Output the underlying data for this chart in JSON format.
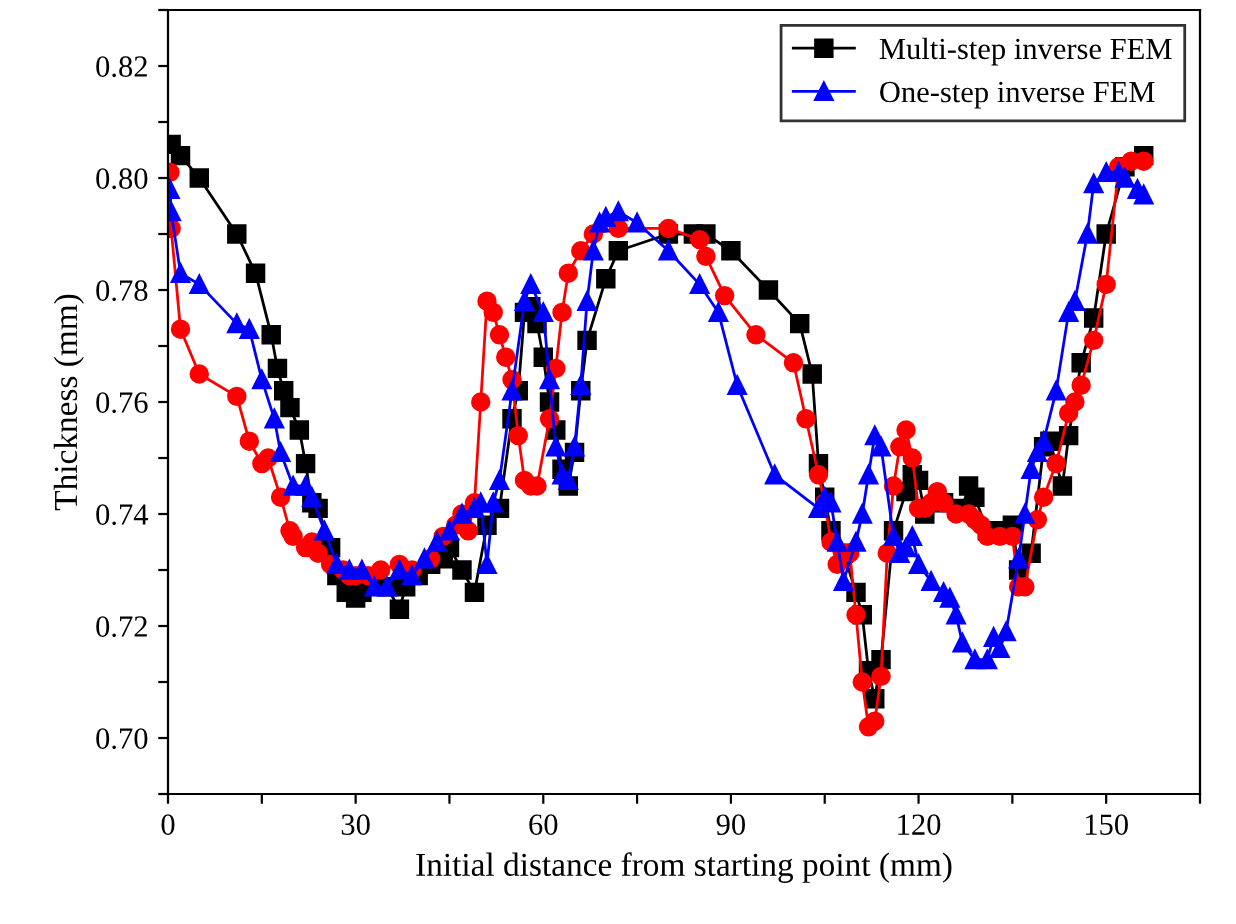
{
  "chart_data": {
    "type": "line",
    "xlabel": "Initial distance from starting point (mm)",
    "ylabel": "Thickness (mm)",
    "xlim": [
      0,
      165
    ],
    "ylim": [
      0.69,
      0.83
    ],
    "xticks": [
      0,
      {
        "value": 15,
        "label": null
      },
      30,
      {
        "value": 45,
        "label": null
      },
      60,
      {
        "value": 75,
        "label": null
      },
      90,
      {
        "value": 105,
        "label": null
      },
      120,
      {
        "value": 135,
        "label": null
      },
      150,
      {
        "value": 165,
        "label": null
      }
    ],
    "yticks": [
      {
        "value": 0.69,
        "label": null
      },
      {
        "value": 0.7,
        "label": "0.70"
      },
      {
        "value": 0.71,
        "label": null
      },
      {
        "value": 0.72,
        "label": "0.72"
      },
      {
        "value": 0.73,
        "label": null
      },
      {
        "value": 0.74,
        "label": "0.74"
      },
      {
        "value": 0.75,
        "label": null
      },
      {
        "value": 0.76,
        "label": "0.76"
      },
      {
        "value": 0.77,
        "label": null
      },
      {
        "value": 0.78,
        "label": "0.78"
      },
      {
        "value": 0.79,
        "label": null
      },
      {
        "value": 0.8,
        "label": "0.80"
      },
      {
        "value": 0.81,
        "label": null
      },
      {
        "value": 0.82,
        "label": "0.82"
      },
      {
        "value": 0.83,
        "label": null
      }
    ],
    "grid": false,
    "legend": "top right",
    "line_style": "solid",
    "series": [
      {
        "name": "Multi-step inverse FEM",
        "color": "#000000",
        "marker": "square",
        "x": [
          0.5,
          2,
          5,
          11,
          14,
          16.5,
          17.5,
          18.5,
          19.5,
          21,
          22,
          23,
          24,
          26,
          27,
          28.5,
          30,
          31,
          33,
          35,
          37,
          38,
          40,
          42,
          44,
          45,
          47,
          49,
          51,
          53,
          55,
          56,
          57,
          58,
          59,
          60,
          61,
          62,
          63,
          64,
          65,
          66,
          67,
          70,
          72,
          80,
          84,
          86,
          90,
          96,
          101,
          103,
          104,
          105,
          106,
          108,
          110,
          111,
          112,
          113,
          114,
          116,
          118,
          119,
          120,
          121,
          124,
          127,
          128,
          129,
          131,
          133,
          135,
          136,
          138,
          140,
          141,
          143,
          144,
          146,
          148,
          150,
          153,
          156
        ],
        "values": [
          0.806,
          0.804,
          0.8,
          0.79,
          0.783,
          0.772,
          0.766,
          0.762,
          0.759,
          0.755,
          0.749,
          0.742,
          0.741,
          0.734,
          0.729,
          0.726,
          0.725,
          0.726,
          0.728,
          0.727,
          0.723,
          0.727,
          0.729,
          0.731,
          0.732,
          0.734,
          0.73,
          0.726,
          0.738,
          0.741,
          0.757,
          0.762,
          0.776,
          0.777,
          0.774,
          0.768,
          0.76,
          0.755,
          0.748,
          0.745,
          0.751,
          0.762,
          0.771,
          0.782,
          0.787,
          0.79,
          0.79,
          0.79,
          0.787,
          0.78,
          0.774,
          0.765,
          0.749,
          0.743,
          0.737,
          0.733,
          0.726,
          0.722,
          0.712,
          0.707,
          0.714,
          0.737,
          0.744,
          0.747,
          0.746,
          0.74,
          0.742,
          0.741,
          0.745,
          0.743,
          0.737,
          0.737,
          0.738,
          0.73,
          0.733,
          0.752,
          0.753,
          0.745,
          0.754,
          0.767,
          0.775,
          0.79,
          0.802,
          0.804
        ]
      },
      {
        "color": "#ff0000",
        "marker": "circle",
        "x": [
          0.3,
          0.5,
          2,
          5,
          11,
          13,
          15,
          16,
          18,
          19.5,
          20,
          22,
          23,
          24,
          26,
          28,
          29,
          30,
          32,
          34,
          37,
          39,
          42,
          44,
          46,
          47,
          48,
          49,
          50,
          51,
          52,
          53,
          54,
          55,
          56,
          57,
          58,
          59,
          61,
          62,
          63,
          64,
          66,
          68,
          72,
          80,
          85,
          86,
          89,
          94,
          100,
          102,
          104,
          105,
          106,
          107,
          108,
          109,
          110,
          111,
          112,
          113,
          114,
          115,
          116,
          117,
          118,
          119,
          120,
          121,
          122,
          123,
          124,
          126,
          128,
          129,
          130,
          131,
          133,
          135,
          136,
          137,
          139,
          140,
          142,
          144,
          145,
          146,
          148,
          150,
          152,
          154,
          156
        ],
        "values": [
          0.801,
          0.791,
          0.773,
          0.765,
          0.761,
          0.753,
          0.749,
          0.75,
          0.743,
          0.737,
          0.736,
          0.734,
          0.735,
          0.733,
          0.731,
          0.73,
          0.729,
          0.729,
          0.729,
          0.73,
          0.731,
          0.73,
          0.732,
          0.736,
          0.738,
          0.74,
          0.737,
          0.742,
          0.76,
          0.778,
          0.776,
          0.772,
          0.768,
          0.764,
          0.754,
          0.746,
          0.745,
          0.745,
          0.757,
          0.766,
          0.776,
          0.783,
          0.787,
          0.79,
          0.791,
          0.791,
          0.789,
          0.786,
          0.779,
          0.772,
          0.767,
          0.757,
          0.747,
          0.742,
          0.735,
          0.731,
          0.733,
          0.733,
          0.722,
          0.71,
          0.702,
          0.703,
          0.711,
          0.733,
          0.745,
          0.752,
          0.755,
          0.75,
          0.741,
          0.741,
          0.742,
          0.744,
          0.742,
          0.74,
          0.74,
          0.739,
          0.738,
          0.736,
          0.736,
          0.736,
          0.727,
          0.727,
          0.739,
          0.743,
          0.749,
          0.758,
          0.76,
          0.763,
          0.771,
          0.781,
          0.802,
          0.803,
          0.803
        ]
      },
      {
        "name": "One-step inverse FEM",
        "color": "#0000ff",
        "marker": "triangle",
        "x": [
          0.3,
          0.5,
          2,
          5,
          11,
          13,
          15,
          17,
          18,
          20,
          22,
          23,
          25,
          27,
          29,
          31,
          33,
          35,
          37,
          39,
          41,
          43,
          45,
          47,
          49,
          50,
          51,
          52,
          53,
          55,
          57,
          58,
          60,
          61,
          62,
          63,
          64,
          65,
          66,
          67,
          68,
          69,
          70,
          72,
          75,
          80,
          85,
          88,
          91,
          97,
          104,
          105,
          106,
          107,
          108,
          110,
          111,
          112,
          113,
          114,
          116,
          117,
          118,
          119,
          120,
          122,
          124,
          125,
          126,
          127,
          129,
          131,
          132,
          133,
          134,
          136,
          137,
          138,
          139,
          140,
          142,
          144,
          145,
          147,
          148,
          150,
          152,
          153,
          155,
          156
        ],
        "values": [
          0.798,
          0.794,
          0.783,
          0.781,
          0.774,
          0.773,
          0.764,
          0.757,
          0.751,
          0.745,
          0.745,
          0.743,
          0.737,
          0.731,
          0.73,
          0.73,
          0.727,
          0.727,
          0.73,
          0.729,
          0.732,
          0.735,
          0.737,
          0.74,
          0.741,
          0.742,
          0.731,
          0.742,
          0.746,
          0.762,
          0.778,
          0.781,
          0.776,
          0.764,
          0.752,
          0.747,
          0.746,
          0.752,
          0.763,
          0.778,
          0.787,
          0.792,
          0.793,
          0.794,
          0.792,
          0.787,
          0.781,
          0.776,
          0.763,
          0.747,
          0.741,
          0.743,
          0.742,
          0.735,
          0.728,
          0.735,
          0.74,
          0.747,
          0.754,
          0.752,
          0.736,
          0.733,
          0.734,
          0.736,
          0.731,
          0.728,
          0.726,
          0.725,
          0.722,
          0.717,
          0.714,
          0.714,
          0.718,
          0.716,
          0.719,
          0.732,
          0.74,
          0.748,
          0.751,
          0.753,
          0.762,
          0.776,
          0.778,
          0.79,
          0.799,
          0.801,
          0.801,
          0.8,
          0.798,
          0.797
        ]
      }
    ]
  }
}
